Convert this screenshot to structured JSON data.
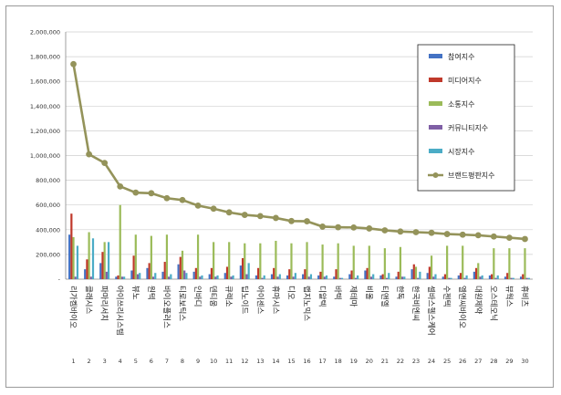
{
  "chart_data": {
    "type": "bar",
    "categories": [
      "리가켐바이오",
      "클래시스",
      "파마리서치",
      "아이쓰리시스템",
      "뷰노",
      "원텍",
      "바이오플러스",
      "티로보틱스",
      "인바디",
      "덴티움",
      "큐렉소",
      "딥노이드",
      "아이센스",
      "휴마시스",
      "디오",
      "랩지노믹스",
      "디알텍",
      "바텍",
      "제테마",
      "비올",
      "티앤엘",
      "한독",
      "한국비엔씨",
      "셀바스헬스케어",
      "수젠텍",
      "엘앤씨바이오",
      "대원제약",
      "오스테오닉",
      "뷰웍스",
      "휴비츠"
    ],
    "indices": [
      "1",
      "2",
      "3",
      "4",
      "5",
      "6",
      "7",
      "8",
      "9",
      "10",
      "11",
      "12",
      "13",
      "14",
      "15",
      "16",
      "17",
      "18",
      "19",
      "20",
      "21",
      "22",
      "23",
      "24",
      "25",
      "26",
      "27",
      "28",
      "29",
      "30"
    ],
    "series": [
      {
        "name": "참여지수",
        "color": "#4472c4",
        "values": [
          360000,
          80000,
          130000,
          20000,
          70000,
          90000,
          60000,
          120000,
          60000,
          40000,
          50000,
          110000,
          30000,
          40000,
          30000,
          40000,
          30000,
          20000,
          40000,
          70000,
          30000,
          20000,
          80000,
          50000,
          20000,
          30000,
          60000,
          30000,
          20000,
          20000
        ]
      },
      {
        "name": "미디어지수",
        "color": "#c0392b",
        "values": [
          530000,
          160000,
          220000,
          30000,
          190000,
          130000,
          140000,
          180000,
          90000,
          90000,
          100000,
          170000,
          90000,
          90000,
          80000,
          80000,
          60000,
          80000,
          70000,
          90000,
          40000,
          60000,
          120000,
          100000,
          40000,
          50000,
          90000,
          40000,
          50000,
          40000
        ]
      },
      {
        "name": "소통지수",
        "color": "#9bbb59",
        "values": [
          340000,
          380000,
          300000,
          600000,
          360000,
          350000,
          360000,
          230000,
          360000,
          300000,
          300000,
          290000,
          290000,
          310000,
          290000,
          300000,
          280000,
          290000,
          270000,
          270000,
          250000,
          260000,
          100000,
          190000,
          270000,
          270000,
          130000,
          250000,
          250000,
          250000
        ]
      },
      {
        "name": "커뮤니티지수",
        "color": "#7f5fa5",
        "values": [
          20000,
          20000,
          60000,
          20000,
          40000,
          20000,
          20000,
          70000,
          20000,
          20000,
          20000,
          40000,
          10000,
          20000,
          20000,
          20000,
          20000,
          10000,
          10000,
          20000,
          10000,
          20000,
          10000,
          20000,
          10000,
          10000,
          20000,
          10000,
          10000,
          10000
        ]
      },
      {
        "name": "시장지수",
        "color": "#4bacc6",
        "values": [
          270000,
          330000,
          300000,
          20000,
          50000,
          50000,
          40000,
          50000,
          30000,
          30000,
          30000,
          130000,
          30000,
          40000,
          50000,
          40000,
          30000,
          10000,
          30000,
          40000,
          50000,
          20000,
          60000,
          40000,
          10000,
          30000,
          30000,
          30000,
          10000,
          10000
        ]
      }
    ],
    "line": {
      "name": "브랜드평판지수",
      "color": "#94935a",
      "values": [
        1740000,
        1010000,
        940000,
        750000,
        700000,
        695000,
        655000,
        640000,
        595000,
        570000,
        540000,
        520000,
        510000,
        495000,
        470000,
        468000,
        425000,
        420000,
        418000,
        410000,
        395000,
        385000,
        380000,
        375000,
        365000,
        360000,
        355000,
        345000,
        335000,
        325000
      ]
    },
    "ylim": [
      0,
      2000000
    ],
    "yticks": [
      "-",
      "200,000",
      "400,000",
      "600,000",
      "800,000",
      "1,000,000",
      "1,200,000",
      "1,400,000",
      "1,600,000",
      "1,800,000",
      "2,000,000"
    ],
    "legend_position": "top-right",
    "grid": true
  }
}
